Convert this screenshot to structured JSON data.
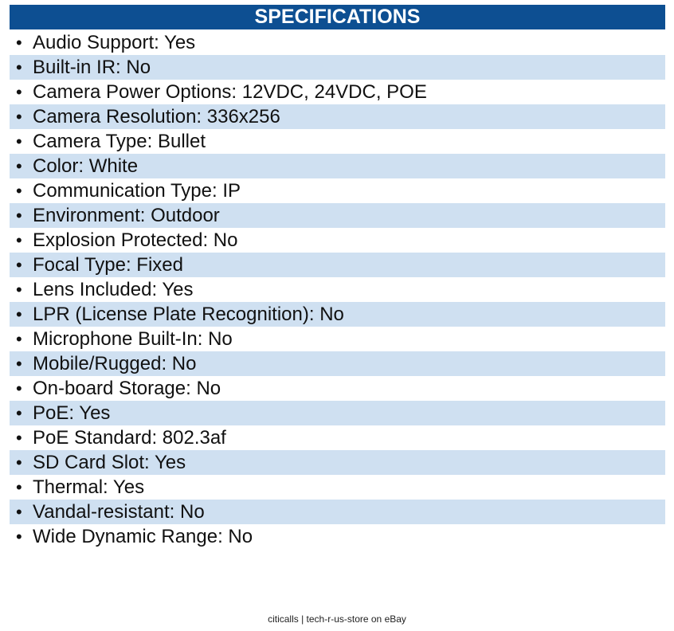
{
  "header": {
    "title": "SPECIFICATIONS"
  },
  "colors": {
    "header_bg": "#0d4f92",
    "stripe_bg": "#cfe0f1",
    "text": "#111111"
  },
  "bullet_glyph": "•",
  "specs": [
    {
      "text": "Audio Support: Yes"
    },
    {
      "text": "Built-in IR: No"
    },
    {
      "text": "Camera Power Options: 12VDC, 24VDC, POE"
    },
    {
      "text": "Camera Resolution: 336x256"
    },
    {
      "text": "Camera Type: Bullet"
    },
    {
      "text": "Color: White"
    },
    {
      "text": "Communication Type: IP"
    },
    {
      "text": "Environment: Outdoor"
    },
    {
      "text": "Explosion Protected: No"
    },
    {
      "text": "Focal Type: Fixed"
    },
    {
      "text": "Lens Included: Yes"
    },
    {
      "text": "LPR (License Plate Recognition): No"
    },
    {
      "text": "Microphone Built-In: No"
    },
    {
      "text": "Mobile/Rugged: No"
    },
    {
      "text": "On-board Storage: No"
    },
    {
      "text": "PoE: Yes"
    },
    {
      "text": "PoE Standard: 802.3af"
    },
    {
      "text": "SD Card Slot: Yes"
    },
    {
      "text": "Thermal: Yes"
    },
    {
      "text": "Vandal-resistant: No"
    },
    {
      "text": "Wide Dynamic Range: No"
    }
  ],
  "footer": {
    "text": "citicalls | tech-r-us-store on eBay"
  }
}
